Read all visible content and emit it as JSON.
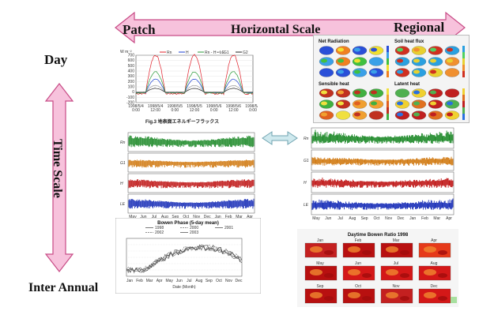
{
  "axes": {
    "horizontal_title": "Horizontal Scale",
    "horizontal_left": "Patch",
    "horizontal_right": "Regional",
    "vertical_title": "Time Scale",
    "vertical_top": "Day",
    "vertical_bottom": "Inter Annual"
  },
  "colors": {
    "arrow_fill": "#f7c2dc",
    "arrow_stroke": "#c84b86",
    "double_arrow_fill": "#cfe9ee",
    "double_arrow_stroke": "#6fa3b0"
  },
  "energy_flux_panel": {
    "caption": "Fig.3 地表面エネルギーフラックス",
    "legend": [
      "Rn",
      "H",
      "Rn - H - LE",
      "G1",
      "G2"
    ],
    "legend_colors": [
      "#e0202a",
      "#1a3fd0",
      "#2a9a3a",
      "#a0a0a0",
      "#222222"
    ],
    "y_ticks": [
      "700",
      "600",
      "500",
      "400",
      "300",
      "200",
      "100",
      "0",
      "-100",
      "-200"
    ],
    "x_ticks": [
      "1998/5/4\n0:00",
      "1998/5/4\n12:00",
      "1998/5/5\n0:00",
      "1998/5/5\n12:00",
      "1998/5/6\n0:00",
      "1998/5/6\n12:00",
      "1998/5/7\n0:00"
    ],
    "unit": "W m⁻²"
  },
  "maps_panel": {
    "titles": [
      "Net Radiation",
      "Soil heat flux",
      "Sensible heat",
      "Latent heat"
    ]
  },
  "timeseries_left": {
    "rows": [
      "Rn",
      "G1",
      "H",
      "LE"
    ],
    "x_ticks": [
      "May",
      "Jun",
      "Jul",
      "Aug",
      "Sep",
      "Oct",
      "Nov",
      "Dec",
      "Jan",
      "Feb",
      "Mar",
      "Apr"
    ]
  },
  "timeseries_right": {
    "rows": [
      "Rn",
      "G1",
      "H",
      "LE"
    ],
    "x_ticks": [
      "May",
      "Jun",
      "Jul",
      "Aug",
      "Sep",
      "Oct",
      "Nov",
      "Dec",
      "Jan",
      "Feb",
      "Mar",
      "Apr"
    ]
  },
  "bowen_panel": {
    "title": "Bowen Phase (5-day mean)",
    "legend": [
      "1998",
      "2000",
      "2001",
      "2002",
      "2003"
    ],
    "xlabel": "Date (Month)",
    "x_ticks": [
      "Jan",
      "Feb",
      "Mar",
      "Apr",
      "May",
      "Jun",
      "Jul",
      "Aug",
      "Sep",
      "Oct",
      "Nov",
      "Dec"
    ]
  },
  "bowen_maps_panel": {
    "title": "Daytime  Bowen Ratio  1998",
    "months": [
      "Jan",
      "Feb",
      "Mar",
      "Apr",
      "May",
      "Jun",
      "Jul",
      "Aug",
      "Sep",
      "Oct",
      "Nov",
      "Dec"
    ]
  }
}
